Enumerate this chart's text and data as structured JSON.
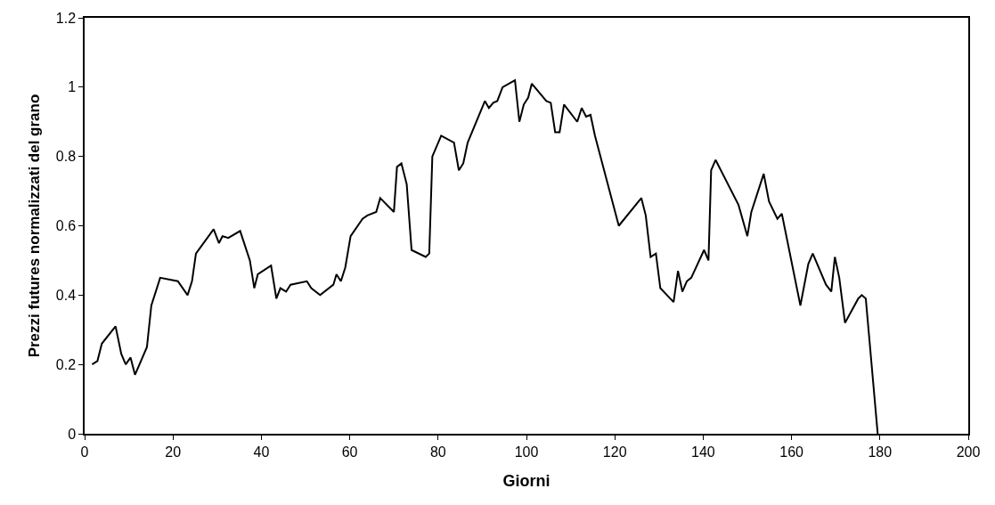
{
  "chart_data": {
    "type": "line",
    "xlabel": "Giorni",
    "ylabel": "Prezzi futures normalizzati del grano",
    "x": [
      1.7,
      2.9,
      3.9,
      7,
      8.3,
      9.3,
      10.4,
      11.4,
      14.1,
      15.1,
      17.1,
      21.1,
      23.3,
      24.3,
      25.2,
      29.2,
      30.4,
      31.2,
      32.5,
      35.2,
      37.4,
      38.4,
      39.2,
      42.2,
      43.4,
      44.3,
      45.6,
      46.6,
      50.3,
      51.3,
      53.3,
      56.3,
      57,
      58,
      59,
      60.2,
      62.9,
      64,
      66,
      66.9,
      70,
      70.7,
      71.7,
      72.9,
      74,
      77.2,
      78,
      78.7,
      80.7,
      83.6,
      84.7,
      85.7,
      86.7,
      90.6,
      91.5,
      92.5,
      93.4,
      94.6,
      97.4,
      98.4,
      99.4,
      100.4,
      101.2,
      104.5,
      105.5,
      106.5,
      107.5,
      108.5,
      111.5,
      112.5,
      113.5,
      114.5,
      115.5,
      120.9,
      126,
      127,
      128.1,
      129.3,
      130.3,
      133.3,
      134.3,
      135.3,
      136.3,
      137.3,
      140.2,
      141.2,
      141.8,
      142.8,
      148,
      150,
      150.9,
      153.7,
      154.9,
      156.8,
      157.8,
      162,
      163.8,
      164.8,
      167.8,
      169,
      169.8,
      170.8,
      172.1,
      175.1,
      175.9,
      176.8,
      179.5
    ],
    "series": [
      {
        "color": "#000000",
        "values": [
          0.2,
          0.21,
          0.26,
          0.31,
          0.23,
          0.2,
          0.22,
          0.17,
          0.25,
          0.37,
          0.45,
          0.44,
          0.4,
          0.44,
          0.52,
          0.59,
          0.55,
          0.57,
          0.565,
          0.585,
          0.5,
          0.42,
          0.46,
          0.485,
          0.39,
          0.42,
          0.41,
          0.43,
          0.44,
          0.42,
          0.4,
          0.43,
          0.46,
          0.44,
          0.48,
          0.57,
          0.62,
          0.63,
          0.64,
          0.68,
          0.64,
          0.77,
          0.78,
          0.72,
          0.53,
          0.51,
          0.52,
          0.8,
          0.86,
          0.84,
          0.76,
          0.78,
          0.84,
          0.96,
          0.94,
          0.955,
          0.96,
          1.0,
          1.02,
          0.9,
          0.95,
          0.97,
          1.01,
          0.96,
          0.955,
          0.87,
          0.87,
          0.95,
          0.9,
          0.94,
          0.915,
          0.92,
          0.86,
          0.6,
          0.68,
          0.63,
          0.51,
          0.52,
          0.42,
          0.38,
          0.47,
          0.41,
          0.44,
          0.45,
          0.53,
          0.5,
          0.76,
          0.79,
          0.66,
          0.57,
          0.64,
          0.75,
          0.67,
          0.62,
          0.635,
          0.37,
          0.49,
          0.52,
          0.43,
          0.41,
          0.51,
          0.45,
          0.32,
          0.39,
          0.4,
          0.39,
          0
        ]
      }
    ],
    "xlim": [
      0,
      200
    ],
    "xticks": [
      0,
      20,
      40,
      60,
      80,
      100,
      120,
      140,
      160,
      180,
      200
    ],
    "ylim": [
      0,
      1.2
    ],
    "yticks": [
      0,
      0.2,
      0.4,
      0.6,
      0.8,
      1,
      1.2
    ],
    "grid": false,
    "marker": "none",
    "line_style": "solid"
  }
}
